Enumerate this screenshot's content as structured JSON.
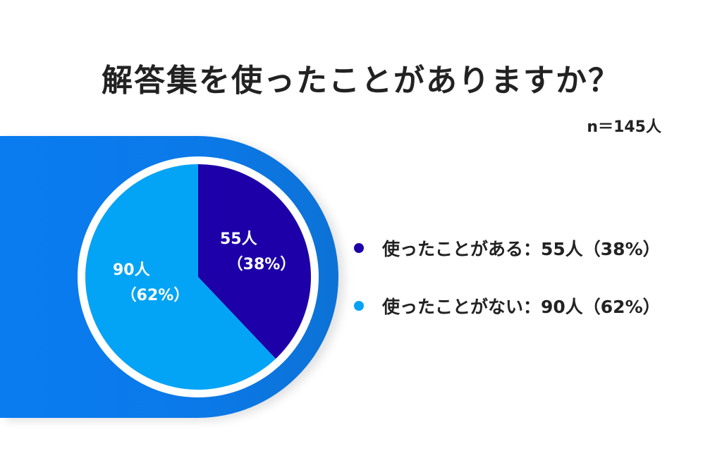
{
  "title": "解答集を使ったことがありますか？",
  "sample_size": "n＝145人",
  "chart_data": {
    "type": "pie",
    "title": "解答集を使ったことがありますか？",
    "subtitle": "n＝145人",
    "total": 145,
    "categories": [
      "使ったことがある",
      "使ったことがない"
    ],
    "values": [
      55,
      90
    ],
    "percentages": [
      38,
      62
    ],
    "colors": [
      "#1e00a8",
      "#03a4f5"
    ],
    "start_angle_deg": 0,
    "direction": "clockwise",
    "legend_position": "right"
  },
  "slices": [
    {
      "count_label": "55人",
      "percent_label": "（38%）"
    },
    {
      "count_label": "90人",
      "percent_label": "（62%）"
    }
  ],
  "legend": [
    {
      "label": "使ったことがある：55人（38%）",
      "color": "#1e00a8"
    },
    {
      "label": "使ったことがない：90人（62%）",
      "color": "#03a4f5"
    }
  ]
}
